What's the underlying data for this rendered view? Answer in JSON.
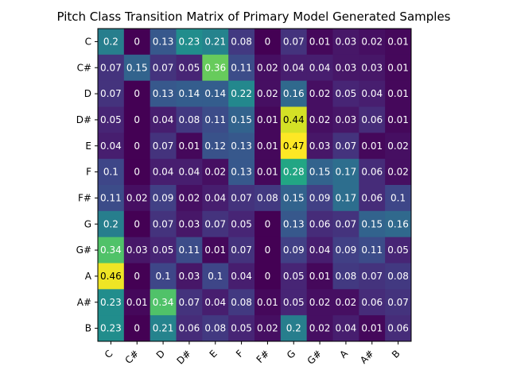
{
  "chart_data": {
    "type": "heatmap",
    "title": "Pitch Class Transition Matrix of Primary Model Generated Samples",
    "xlabel": "",
    "ylabel": "",
    "row_labels": [
      "C",
      "C#",
      "D",
      "D#",
      "E",
      "F",
      "F#",
      "G",
      "G#",
      "A",
      "A#",
      "B"
    ],
    "col_labels": [
      "C",
      "C#",
      "D",
      "D#",
      "E",
      "F",
      "F#",
      "G",
      "G#",
      "A",
      "A#",
      "B"
    ],
    "values": [
      [
        0.2,
        0.0,
        0.13,
        0.23,
        0.21,
        0.08,
        0.0,
        0.07,
        0.01,
        0.03,
        0.02,
        0.01
      ],
      [
        0.07,
        0.15,
        0.07,
        0.05,
        0.36,
        0.11,
        0.02,
        0.04,
        0.04,
        0.03,
        0.03,
        0.01
      ],
      [
        0.07,
        0.0,
        0.13,
        0.14,
        0.14,
        0.22,
        0.02,
        0.16,
        0.02,
        0.05,
        0.04,
        0.01
      ],
      [
        0.05,
        0.0,
        0.04,
        0.08,
        0.11,
        0.15,
        0.01,
        0.44,
        0.02,
        0.03,
        0.06,
        0.01
      ],
      [
        0.04,
        0.0,
        0.07,
        0.01,
        0.12,
        0.13,
        0.01,
        0.47,
        0.03,
        0.07,
        0.01,
        0.02
      ],
      [
        0.1,
        0.0,
        0.04,
        0.04,
        0.02,
        0.13,
        0.01,
        0.28,
        0.15,
        0.17,
        0.06,
        0.02
      ],
      [
        0.11,
        0.02,
        0.09,
        0.02,
        0.04,
        0.07,
        0.08,
        0.15,
        0.09,
        0.17,
        0.06,
        0.1
      ],
      [
        0.2,
        0.0,
        0.07,
        0.03,
        0.07,
        0.05,
        0.0,
        0.13,
        0.06,
        0.07,
        0.15,
        0.16
      ],
      [
        0.34,
        0.03,
        0.05,
        0.11,
        0.01,
        0.07,
        0.0,
        0.09,
        0.04,
        0.09,
        0.11,
        0.05
      ],
      [
        0.46,
        0.0,
        0.1,
        0.03,
        0.1,
        0.04,
        0.0,
        0.05,
        0.01,
        0.08,
        0.07,
        0.08
      ],
      [
        0.23,
        0.01,
        0.34,
        0.07,
        0.04,
        0.08,
        0.01,
        0.05,
        0.02,
        0.02,
        0.06,
        0.07
      ],
      [
        0.23,
        0.0,
        0.21,
        0.06,
        0.08,
        0.05,
        0.02,
        0.2,
        0.02,
        0.04,
        0.01,
        0.06
      ]
    ],
    "colormap": "viridis",
    "color_range": [
      0.0,
      0.47
    ],
    "grid": false,
    "cell_labels": true
  }
}
